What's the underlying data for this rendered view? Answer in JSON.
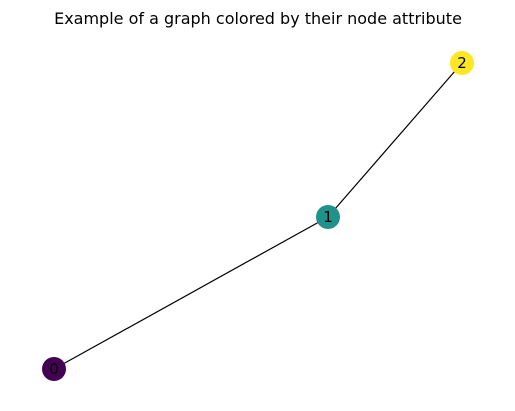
{
  "title": "Example of a graph colored by their node attribute",
  "graph": {
    "nodes": [
      {
        "label": "0",
        "color": "#440154"
      },
      {
        "label": "1",
        "color": "#21918c"
      },
      {
        "label": "2",
        "color": "#fde725"
      }
    ],
    "edges": [
      {
        "from": "0",
        "to": "1"
      },
      {
        "from": "1",
        "to": "2"
      }
    ]
  }
}
